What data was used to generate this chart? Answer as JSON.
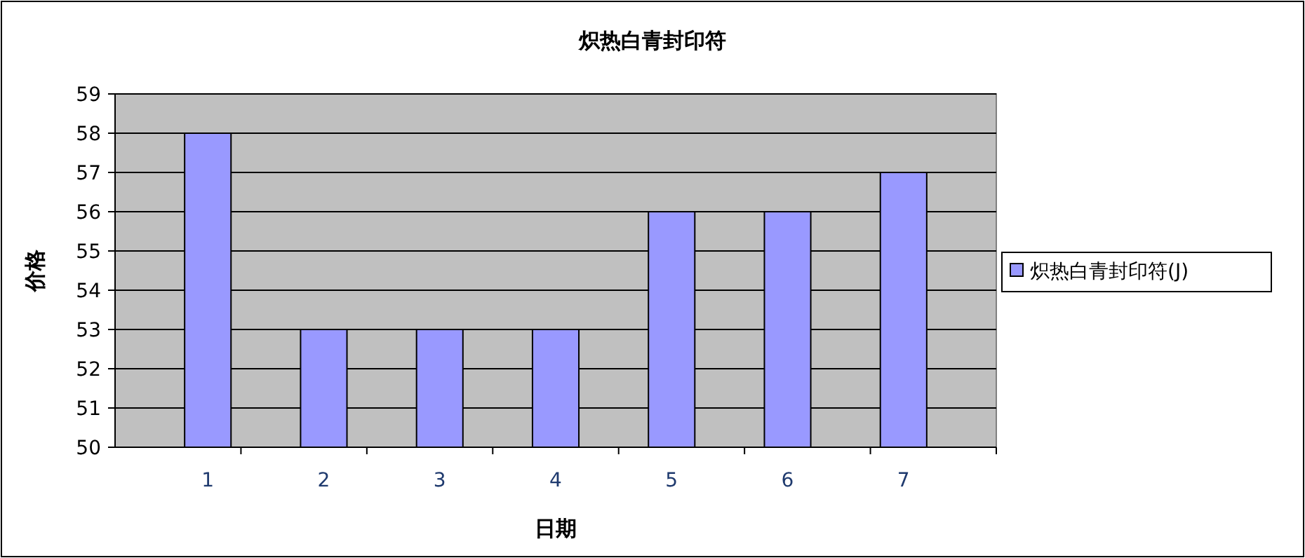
{
  "chart_data": {
    "type": "bar",
    "title": "炽热白青封印符",
    "xlabel": "日期",
    "ylabel": "价格",
    "categories": [
      "1",
      "2",
      "3",
      "4",
      "5",
      "6",
      "7"
    ],
    "series": [
      {
        "name": "炽热白青封印符(J)",
        "color": "#9999ff",
        "values": [
          58,
          53,
          53,
          53,
          56,
          56,
          57
        ]
      }
    ],
    "ylim": [
      50,
      59
    ],
    "yticks": [
      50,
      51,
      52,
      53,
      54,
      55,
      56,
      57,
      58,
      59
    ],
    "grid": "y",
    "legend": "right"
  }
}
